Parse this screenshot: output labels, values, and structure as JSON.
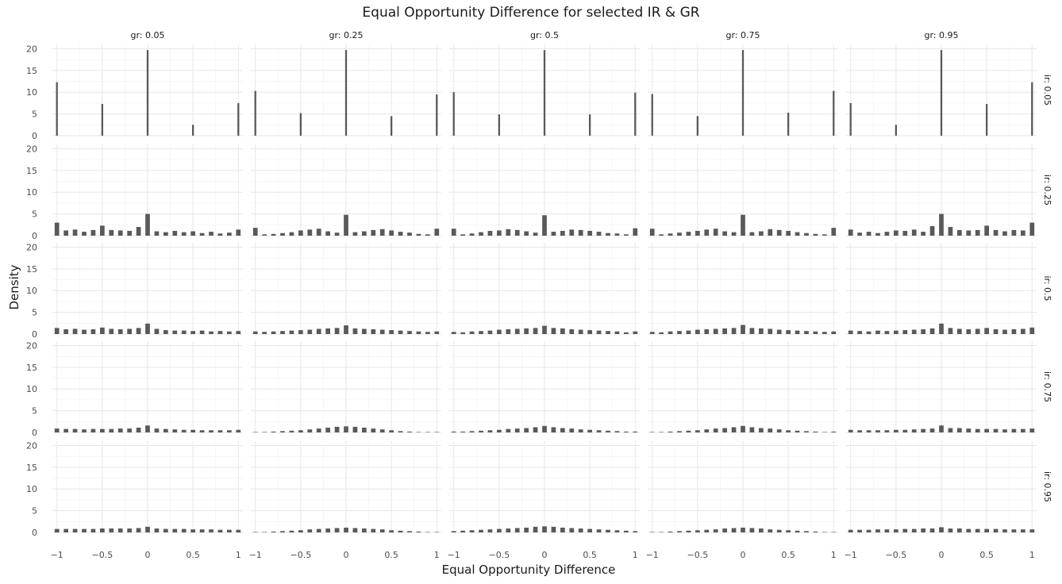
{
  "chart_data": {
    "type": "bar",
    "title": "Equal Opportunity Difference for selected IR & GR",
    "xlabel": "Equal Opportunity Difference",
    "ylabel": "Density",
    "facet_cols": {
      "name": "gr",
      "levels": [
        "gr: 0.05",
        "gr: 0.25",
        "gr: 0.5",
        "gr: 0.75",
        "gr: 0.95"
      ]
    },
    "facet_rows": {
      "name": "ir",
      "levels": [
        "ir: 0.05",
        "ir: 0.25",
        "ir: 0.5",
        "ir: 0.75",
        "ir: 0.95"
      ]
    },
    "xlim": [
      -1.05,
      1.05
    ],
    "ylim": [
      0,
      21
    ],
    "xticks": [
      -1,
      -0.5,
      0,
      0.5,
      1
    ],
    "xtick_labels": [
      "−1",
      "−0.5",
      "0",
      "0.5",
      "1"
    ],
    "yticks": [
      0,
      5,
      10,
      15,
      20
    ],
    "ytick_labels": [
      "0",
      "5",
      "10",
      "15",
      "20"
    ],
    "grid": true,
    "bar_color": "#595959",
    "panels": [
      [
        {
          "x": [
            -1,
            -0.5,
            0,
            0.5,
            1
          ],
          "y": [
            12.3,
            7.3,
            19.7,
            2.5,
            7.5
          ]
        },
        {
          "x": [
            -1,
            -0.5,
            0,
            0.5,
            1
          ],
          "y": [
            10.3,
            5.2,
            19.7,
            4.5,
            9.5
          ]
        },
        {
          "x": [
            -1,
            -0.5,
            0,
            0.5,
            1
          ],
          "y": [
            10.0,
            4.9,
            19.7,
            4.9,
            9.9
          ]
        },
        {
          "x": [
            -1,
            -0.5,
            0,
            0.5,
            1
          ],
          "y": [
            9.6,
            4.5,
            19.7,
            5.3,
            10.3
          ]
        },
        {
          "x": [
            -1,
            -0.5,
            0,
            0.5,
            1
          ],
          "y": [
            7.5,
            2.5,
            19.7,
            7.3,
            12.3
          ]
        }
      ],
      [
        {
          "x": [
            -1,
            -0.9,
            -0.8,
            -0.7,
            -0.6,
            -0.5,
            -0.4,
            -0.3,
            -0.2,
            -0.1,
            0,
            0.1,
            0.2,
            0.3,
            0.4,
            0.5,
            0.6,
            0.7,
            0.8,
            0.9,
            1
          ],
          "y": [
            3.0,
            1.2,
            1.4,
            0.9,
            1.3,
            2.3,
            1.3,
            1.2,
            1.1,
            2.0,
            5.0,
            1.0,
            0.8,
            1.1,
            0.8,
            1.0,
            0.6,
            0.9,
            0.5,
            0.7,
            1.4
          ]
        },
        {
          "x": [
            -1,
            -0.9,
            -0.8,
            -0.7,
            -0.6,
            -0.5,
            -0.4,
            -0.3,
            -0.2,
            -0.1,
            0,
            0.1,
            0.2,
            0.3,
            0.4,
            0.5,
            0.6,
            0.7,
            0.8,
            0.9,
            1
          ],
          "y": [
            1.8,
            0.3,
            0.4,
            0.6,
            0.8,
            1.2,
            1.4,
            1.6,
            1.0,
            0.7,
            4.8,
            0.8,
            1.0,
            1.3,
            1.5,
            1.2,
            0.9,
            0.7,
            0.4,
            0.3,
            1.6
          ]
        },
        {
          "x": [
            -1,
            -0.9,
            -0.8,
            -0.7,
            -0.6,
            -0.5,
            -0.4,
            -0.3,
            -0.2,
            -0.1,
            0,
            0.1,
            0.2,
            0.3,
            0.4,
            0.5,
            0.6,
            0.7,
            0.8,
            0.9,
            1
          ],
          "y": [
            1.6,
            0.3,
            0.5,
            0.8,
            1.1,
            1.2,
            1.5,
            1.3,
            1.0,
            0.7,
            4.7,
            0.9,
            1.1,
            1.4,
            1.3,
            1.1,
            0.9,
            0.6,
            0.5,
            0.3,
            1.7
          ]
        },
        {
          "x": [
            -1,
            -0.9,
            -0.8,
            -0.7,
            -0.6,
            -0.5,
            -0.4,
            -0.3,
            -0.2,
            -0.1,
            0,
            0.1,
            0.2,
            0.3,
            0.4,
            0.5,
            0.6,
            0.7,
            0.8,
            0.9,
            1
          ],
          "y": [
            1.6,
            0.3,
            0.5,
            0.7,
            0.9,
            1.1,
            1.4,
            1.6,
            1.0,
            0.8,
            4.8,
            0.8,
            1.0,
            1.5,
            1.3,
            1.1,
            0.8,
            0.6,
            0.4,
            0.3,
            1.8
          ]
        },
        {
          "x": [
            -1,
            -0.9,
            -0.8,
            -0.7,
            -0.6,
            -0.5,
            -0.4,
            -0.3,
            -0.2,
            -0.1,
            0,
            0.1,
            0.2,
            0.3,
            0.4,
            0.5,
            0.6,
            0.7,
            0.8,
            0.9,
            1
          ],
          "y": [
            1.4,
            0.7,
            0.9,
            0.6,
            0.9,
            1.2,
            1.1,
            1.4,
            0.9,
            2.2,
            5.0,
            2.0,
            1.3,
            1.2,
            1.3,
            2.3,
            1.3,
            1.0,
            1.3,
            1.2,
            3.0
          ]
        }
      ],
      [
        {
          "x": [
            -1,
            -0.9,
            -0.8,
            -0.7,
            -0.6,
            -0.5,
            -0.4,
            -0.3,
            -0.2,
            -0.1,
            0,
            0.1,
            0.2,
            0.3,
            0.4,
            0.5,
            0.6,
            0.7,
            0.8,
            0.9,
            1
          ],
          "y": [
            1.4,
            1.1,
            1.2,
            1.0,
            1.1,
            1.5,
            1.2,
            1.1,
            1.2,
            1.4,
            2.4,
            1.2,
            0.9,
            0.8,
            0.8,
            0.7,
            0.8,
            0.6,
            0.7,
            0.6,
            0.7
          ]
        },
        {
          "x": [
            -1,
            -0.9,
            -0.8,
            -0.7,
            -0.6,
            -0.5,
            -0.4,
            -0.3,
            -0.2,
            -0.1,
            0,
            0.1,
            0.2,
            0.3,
            0.4,
            0.5,
            0.6,
            0.7,
            0.8,
            0.9,
            1
          ],
          "y": [
            0.6,
            0.5,
            0.6,
            0.7,
            0.8,
            0.9,
            1.0,
            1.2,
            1.3,
            1.4,
            2.0,
            1.3,
            1.2,
            1.1,
            1.0,
            0.9,
            0.8,
            0.7,
            0.6,
            0.5,
            0.6
          ]
        },
        {
          "x": [
            -1,
            -0.9,
            -0.8,
            -0.7,
            -0.6,
            -0.5,
            -0.4,
            -0.3,
            -0.2,
            -0.1,
            0,
            0.1,
            0.2,
            0.3,
            0.4,
            0.5,
            0.6,
            0.7,
            0.8,
            0.9,
            1
          ],
          "y": [
            0.5,
            0.4,
            0.6,
            0.7,
            0.8,
            1.0,
            1.1,
            1.2,
            1.3,
            1.4,
            1.9,
            1.4,
            1.3,
            1.1,
            1.0,
            0.9,
            0.8,
            0.7,
            0.6,
            0.4,
            0.6
          ]
        },
        {
          "x": [
            -1,
            -0.9,
            -0.8,
            -0.7,
            -0.6,
            -0.5,
            -0.4,
            -0.3,
            -0.2,
            -0.1,
            0,
            0.1,
            0.2,
            0.3,
            0.4,
            0.5,
            0.6,
            0.7,
            0.8,
            0.9,
            1
          ],
          "y": [
            0.5,
            0.4,
            0.6,
            0.7,
            0.8,
            1.0,
            1.1,
            1.2,
            1.3,
            1.4,
            2.1,
            1.4,
            1.3,
            1.2,
            1.0,
            0.9,
            0.8,
            0.7,
            0.6,
            0.5,
            0.6
          ]
        },
        {
          "x": [
            -1,
            -0.9,
            -0.8,
            -0.7,
            -0.6,
            -0.5,
            -0.4,
            -0.3,
            -0.2,
            -0.1,
            0,
            0.1,
            0.2,
            0.3,
            0.4,
            0.5,
            0.6,
            0.7,
            0.8,
            0.9,
            1
          ],
          "y": [
            0.8,
            0.7,
            0.6,
            0.8,
            0.7,
            0.8,
            0.9,
            1.0,
            1.1,
            1.3,
            2.4,
            1.4,
            1.2,
            1.1,
            1.2,
            1.4,
            1.1,
            1.0,
            1.1,
            1.2,
            1.5
          ]
        }
      ],
      [
        {
          "x": [
            -1,
            -0.9,
            -0.8,
            -0.7,
            -0.6,
            -0.5,
            -0.4,
            -0.3,
            -0.2,
            -0.1,
            0,
            0.1,
            0.2,
            0.3,
            0.4,
            0.5,
            0.6,
            0.7,
            0.8,
            0.9,
            1
          ],
          "y": [
            0.9,
            0.8,
            0.8,
            0.7,
            0.8,
            0.8,
            0.8,
            0.9,
            0.9,
            1.1,
            1.6,
            0.9,
            0.8,
            0.7,
            0.6,
            0.6,
            0.5,
            0.5,
            0.5,
            0.5,
            0.6
          ]
        },
        {
          "x": [
            -1,
            -0.9,
            -0.8,
            -0.7,
            -0.6,
            -0.5,
            -0.4,
            -0.3,
            -0.2,
            -0.1,
            0,
            0.1,
            0.2,
            0.3,
            0.4,
            0.5,
            0.6,
            0.7,
            0.8,
            0.9,
            1
          ],
          "y": [
            0.1,
            0.1,
            0.2,
            0.3,
            0.4,
            0.5,
            0.7,
            0.9,
            1.1,
            1.3,
            1.4,
            1.3,
            1.1,
            0.9,
            0.7,
            0.5,
            0.3,
            0.2,
            0.1,
            0.1,
            0.1
          ]
        },
        {
          "x": [
            -1,
            -0.9,
            -0.8,
            -0.7,
            -0.6,
            -0.5,
            -0.4,
            -0.3,
            -0.2,
            -0.1,
            0,
            0.1,
            0.2,
            0.3,
            0.4,
            0.5,
            0.6,
            0.7,
            0.8,
            0.9,
            1
          ],
          "y": [
            0.2,
            0.2,
            0.3,
            0.4,
            0.5,
            0.6,
            0.8,
            0.9,
            1.0,
            1.2,
            1.5,
            1.2,
            1.0,
            0.9,
            0.7,
            0.6,
            0.5,
            0.4,
            0.3,
            0.2,
            0.2
          ]
        },
        {
          "x": [
            -1,
            -0.9,
            -0.8,
            -0.7,
            -0.6,
            -0.5,
            -0.4,
            -0.3,
            -0.2,
            -0.1,
            0,
            0.1,
            0.2,
            0.3,
            0.4,
            0.5,
            0.6,
            0.7,
            0.8,
            0.9,
            1
          ],
          "y": [
            0.1,
            0.1,
            0.2,
            0.3,
            0.4,
            0.5,
            0.7,
            0.9,
            1.0,
            1.2,
            1.5,
            1.2,
            1.0,
            0.9,
            0.7,
            0.5,
            0.4,
            0.3,
            0.2,
            0.1,
            0.2
          ]
        },
        {
          "x": [
            -1,
            -0.9,
            -0.8,
            -0.7,
            -0.6,
            -0.5,
            -0.4,
            -0.3,
            -0.2,
            -0.1,
            0,
            0.1,
            0.2,
            0.3,
            0.4,
            0.5,
            0.6,
            0.7,
            0.8,
            0.9,
            1
          ],
          "y": [
            0.6,
            0.5,
            0.5,
            0.5,
            0.5,
            0.6,
            0.6,
            0.7,
            0.8,
            0.9,
            1.6,
            1.0,
            1.0,
            0.9,
            0.8,
            0.8,
            0.8,
            0.7,
            0.8,
            0.8,
            0.9
          ]
        }
      ],
      [
        {
          "x": [
            -1,
            -0.9,
            -0.8,
            -0.7,
            -0.6,
            -0.5,
            -0.4,
            -0.3,
            -0.2,
            -0.1,
            0,
            0.1,
            0.2,
            0.3,
            0.4,
            0.5,
            0.6,
            0.7,
            0.8,
            0.9,
            1
          ],
          "y": [
            0.8,
            0.8,
            0.8,
            0.8,
            0.8,
            0.9,
            0.9,
            0.9,
            0.9,
            1.0,
            1.3,
            0.9,
            0.8,
            0.8,
            0.8,
            0.7,
            0.7,
            0.7,
            0.6,
            0.6,
            0.6
          ]
        },
        {
          "x": [
            -1,
            -0.9,
            -0.8,
            -0.7,
            -0.6,
            -0.5,
            -0.4,
            -0.3,
            -0.2,
            -0.1,
            0,
            0.1,
            0.2,
            0.3,
            0.4,
            0.5,
            0.6,
            0.7,
            0.8,
            0.9,
            1
          ],
          "y": [
            0.1,
            0.1,
            0.2,
            0.3,
            0.4,
            0.5,
            0.7,
            0.8,
            0.9,
            1.0,
            1.1,
            1.0,
            0.9,
            0.8,
            0.7,
            0.5,
            0.4,
            0.3,
            0.2,
            0.1,
            0.1
          ]
        },
        {
          "x": [
            -1,
            -0.9,
            -0.8,
            -0.7,
            -0.6,
            -0.5,
            -0.4,
            -0.3,
            -0.2,
            -0.1,
            0,
            0.1,
            0.2,
            0.3,
            0.4,
            0.5,
            0.6,
            0.7,
            0.8,
            0.9,
            1
          ],
          "y": [
            0.3,
            0.4,
            0.5,
            0.6,
            0.7,
            0.8,
            0.9,
            1.0,
            1.1,
            1.3,
            1.4,
            1.3,
            1.1,
            1.0,
            0.9,
            0.8,
            0.7,
            0.6,
            0.5,
            0.4,
            0.3
          ]
        },
        {
          "x": [
            -1,
            -0.9,
            -0.8,
            -0.7,
            -0.6,
            -0.5,
            -0.4,
            -0.3,
            -0.2,
            -0.1,
            0,
            0.1,
            0.2,
            0.3,
            0.4,
            0.5,
            0.6,
            0.7,
            0.8,
            0.9,
            1
          ],
          "y": [
            0.1,
            0.1,
            0.2,
            0.3,
            0.4,
            0.5,
            0.6,
            0.7,
            0.9,
            1.0,
            1.1,
            1.0,
            0.9,
            0.7,
            0.6,
            0.5,
            0.4,
            0.3,
            0.2,
            0.1,
            0.1
          ]
        },
        {
          "x": [
            -1,
            -0.9,
            -0.8,
            -0.7,
            -0.6,
            -0.5,
            -0.4,
            -0.3,
            -0.2,
            -0.1,
            0,
            0.1,
            0.2,
            0.3,
            0.4,
            0.5,
            0.6,
            0.7,
            0.8,
            0.9,
            1
          ],
          "y": [
            0.6,
            0.6,
            0.6,
            0.7,
            0.7,
            0.7,
            0.8,
            0.8,
            0.9,
            0.9,
            1.2,
            0.9,
            0.9,
            0.8,
            0.8,
            0.8,
            0.8,
            0.7,
            0.7,
            0.7,
            0.7
          ]
        }
      ]
    ]
  }
}
